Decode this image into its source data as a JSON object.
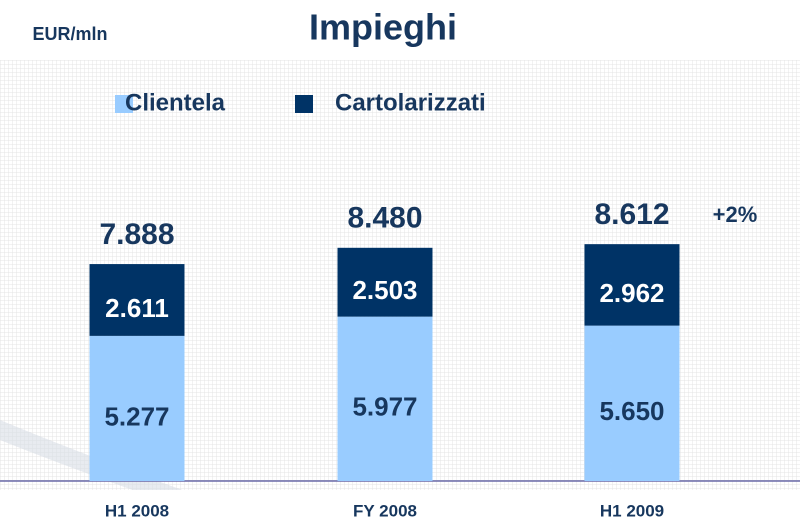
{
  "chart_data": {
    "type": "stacked-bar",
    "title": "Impieghi",
    "subtitle": "EUR/mln",
    "categories": [
      "H1 2008",
      "FY 2008",
      "H1 2009"
    ],
    "series": [
      {
        "name": "Clientela",
        "color": "#99ccff",
        "values": [
          5277,
          5977,
          5650
        ],
        "value_labels": [
          "5.277",
          "5.977",
          "5.650"
        ]
      },
      {
        "name": "Cartolarizzati",
        "color": "#003366",
        "values": [
          2611,
          2503,
          2962
        ],
        "value_labels": [
          "2.611",
          "2.503",
          "2.962"
        ]
      }
    ],
    "totals": {
      "values": [
        7888,
        8480,
        8612
      ],
      "value_labels": [
        "7.888",
        "8.480",
        "8.612"
      ]
    },
    "annotation": "+2%"
  }
}
